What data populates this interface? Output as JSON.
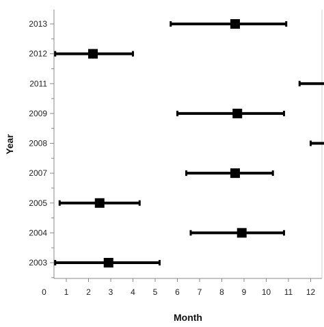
{
  "chart_data": {
    "type": "scatter",
    "title": "",
    "xlabel": "Month",
    "ylabel": "Year",
    "xlim": [
      0,
      12.6
    ],
    "x_ticks": [
      "0",
      "1",
      "2",
      "3",
      "4",
      "5",
      "6",
      "7",
      "8",
      "9",
      "10",
      "11",
      "12"
    ],
    "y_categories": [
      "2003",
      "2004",
      "2005",
      "2007",
      "2008",
      "2009",
      "2011",
      "2012",
      "2013"
    ],
    "grid": false,
    "colors": {
      "marker": "#000000",
      "axis": "#888888",
      "background": "#ffffff"
    },
    "series": [
      {
        "points": [
          {
            "year": "2013",
            "x": 8.6,
            "low": 5.7,
            "high": 10.9
          },
          {
            "year": "2012",
            "x": 2.2,
            "low": 0.5,
            "high": 4.0
          },
          {
            "year": "2011",
            "x": null,
            "low": 11.5,
            "high": 12.6
          },
          {
            "year": "2009",
            "x": 8.7,
            "low": 6.0,
            "high": 10.8
          },
          {
            "year": "2008",
            "x": null,
            "low": 12.0,
            "high": 12.6
          },
          {
            "year": "2007",
            "x": 8.6,
            "low": 6.4,
            "high": 10.3
          },
          {
            "year": "2005",
            "x": 2.5,
            "low": 0.7,
            "high": 4.3
          },
          {
            "year": "2004",
            "x": 8.9,
            "low": 6.6,
            "high": 10.8
          },
          {
            "year": "2003",
            "x": 2.9,
            "low": 0.5,
            "high": 5.2
          }
        ]
      }
    ]
  }
}
